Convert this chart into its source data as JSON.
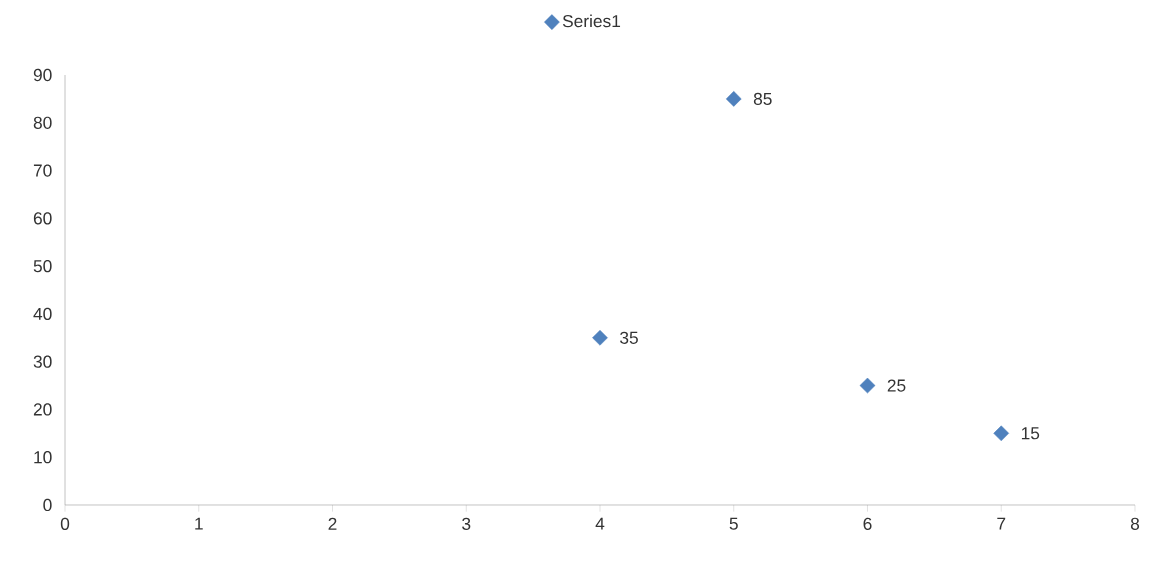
{
  "chart_data": {
    "type": "scatter",
    "x": [
      4,
      5,
      6,
      7
    ],
    "series": [
      {
        "name": "Series1",
        "color": "#4f81bd",
        "values": [
          35,
          85,
          25,
          15
        ]
      }
    ],
    "xlim": [
      0,
      8
    ],
    "xticks": [
      0,
      1,
      2,
      3,
      4,
      5,
      6,
      7,
      8
    ],
    "ylim": [
      0,
      90
    ],
    "yticks": [
      0,
      10,
      20,
      30,
      40,
      50,
      60,
      70,
      80,
      90
    ],
    "data_labels": true,
    "legend": "top",
    "grid": false,
    "marker": "diamond"
  }
}
